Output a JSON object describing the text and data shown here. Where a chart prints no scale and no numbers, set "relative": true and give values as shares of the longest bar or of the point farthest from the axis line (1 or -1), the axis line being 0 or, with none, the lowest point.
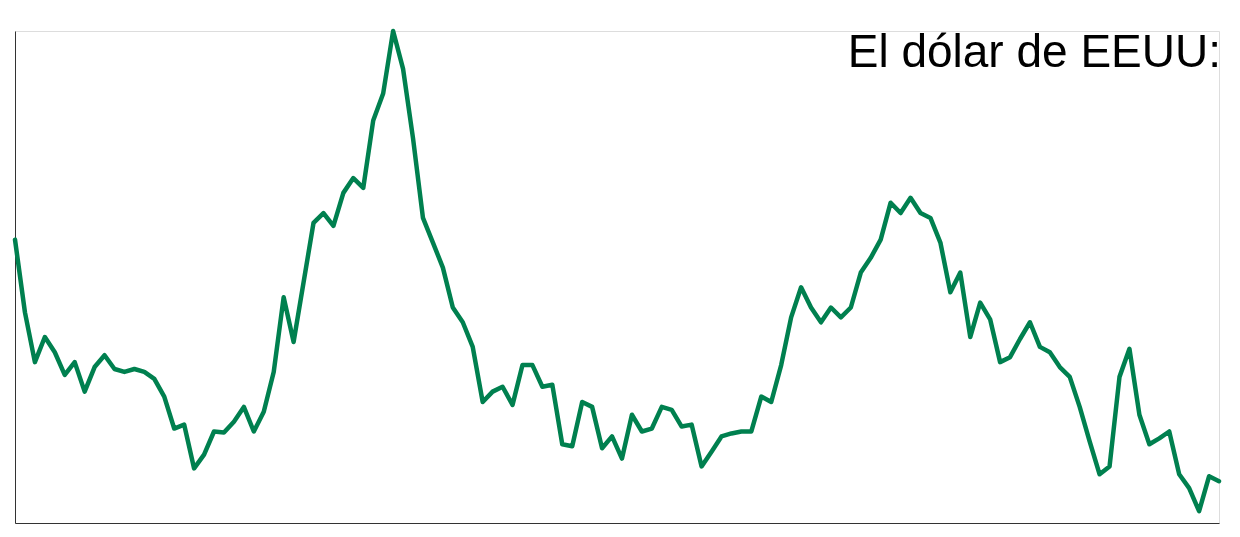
{
  "chart_data": {
    "type": "line",
    "title": "El dólar de EEUU:",
    "relative": true,
    "grid": false,
    "categories": [
      null,
      null,
      null,
      null,
      null,
      null,
      null,
      null,
      null,
      null,
      null,
      null,
      null,
      null,
      null,
      null,
      null,
      null,
      null,
      null,
      null,
      null,
      null,
      null,
      null,
      null,
      null,
      null,
      null,
      null,
      null,
      null,
      null,
      null,
      null,
      null,
      null,
      null,
      null,
      null,
      null,
      null,
      null,
      null,
      null,
      null,
      null,
      null,
      null,
      null,
      null,
      null,
      null,
      null,
      null,
      null,
      null,
      null,
      null,
      null,
      null,
      null,
      null,
      null,
      null,
      null,
      null,
      null,
      null,
      null,
      null,
      null,
      null,
      null,
      null,
      null,
      null,
      null,
      null,
      null,
      null,
      null,
      null,
      null,
      null,
      null,
      null,
      null,
      null,
      null,
      null,
      null,
      null,
      null,
      null,
      null,
      null,
      null,
      null,
      null,
      null,
      null,
      null,
      null,
      null,
      null,
      null,
      null,
      null,
      null,
      null,
      null,
      null,
      null,
      null,
      null,
      null,
      null,
      null,
      null,
      null,
      null
    ],
    "series": [
      {
        "color": "#00804f",
        "values": [
          0.576,
          0.428,
          0.327,
          0.378,
          0.347,
          0.301,
          0.327,
          0.267,
          0.317,
          0.341,
          0.313,
          0.307,
          0.313,
          0.307,
          0.293,
          0.257,
          0.192,
          0.2,
          0.111,
          0.139,
          0.186,
          0.184,
          0.206,
          0.236,
          0.186,
          0.226,
          0.307,
          0.459,
          0.368,
          0.489,
          0.61,
          0.63,
          0.604,
          0.671,
          0.701,
          0.681,
          0.818,
          0.873,
          1,
          0.923,
          0.782,
          0.62,
          0.57,
          0.519,
          0.438,
          0.408,
          0.358,
          0.246,
          0.267,
          0.277,
          0.24,
          0.321,
          0.321,
          0.277,
          0.281,
          0.16,
          0.156,
          0.246,
          0.236,
          0.152,
          0.176,
          0.131,
          0.22,
          0.186,
          0.192,
          0.236,
          0.23,
          0.196,
          0.2,
          0.115,
          0.145,
          0.176,
          0.182,
          0.186,
          0.186,
          0.257,
          0.246,
          0.321,
          0.418,
          0.479,
          0.438,
          0.408,
          0.438,
          0.418,
          0.438,
          0.509,
          0.539,
          0.576,
          0.651,
          0.63,
          0.661,
          0.63,
          0.62,
          0.57,
          0.469,
          0.509,
          0.378,
          0.448,
          0.414,
          0.327,
          0.337,
          0.374,
          0.408,
          0.358,
          0.347,
          0.317,
          0.297,
          0.236,
          0.166,
          0.099,
          0.115,
          0.297,
          0.354,
          0.22,
          0.16,
          0.172,
          0.186,
          0.099,
          0.071,
          0.024,
          0.095,
          0.085
        ]
      }
    ]
  }
}
